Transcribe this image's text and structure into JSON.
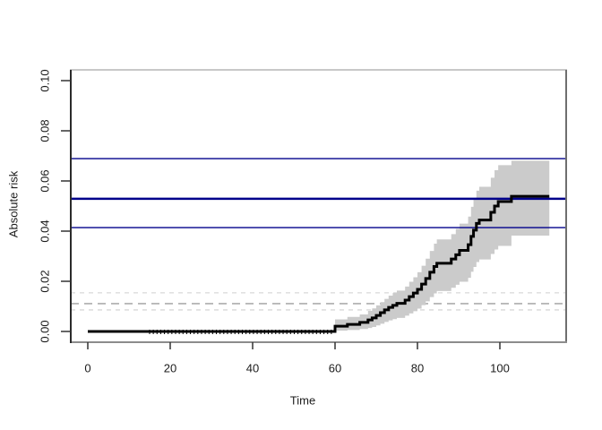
{
  "chart_data": {
    "type": "line",
    "step": true,
    "title": "",
    "xlabel": "Time",
    "ylabel": "Absolute risk",
    "xlim": [
      -4,
      116
    ],
    "ylim": [
      -0.004,
      0.104
    ],
    "grid": false,
    "legend": "none",
    "x_ticks": [
      0,
      20,
      40,
      60,
      80,
      100
    ],
    "x_tick_labels": [
      "0",
      "20",
      "40",
      "60",
      "80",
      "100"
    ],
    "y_ticks": [
      0,
      0.02,
      0.04,
      0.06,
      0.08,
      0.1
    ],
    "y_tick_labels": [
      "0.00",
      "0.02",
      "0.04",
      "0.06",
      "0.08",
      "0.10"
    ],
    "series": [
      {
        "name": "absolute-risk-step-estimate-with-95pct-band",
        "color": "#000000",
        "points": [
          [
            0,
            0,
            0,
            0
          ],
          [
            60,
            0.0021,
            0.0003,
            0.0048
          ],
          [
            63,
            0.0028,
            0.0006,
            0.0058
          ],
          [
            66,
            0.0036,
            0.001,
            0.0068
          ],
          [
            68,
            0.0046,
            0.0014,
            0.0082
          ],
          [
            69,
            0.0054,
            0.0018,
            0.0092
          ],
          [
            70,
            0.0064,
            0.0024,
            0.0104
          ],
          [
            71,
            0.0075,
            0.0031,
            0.0117
          ],
          [
            72,
            0.0086,
            0.0038,
            0.013
          ],
          [
            73,
            0.0096,
            0.0044,
            0.0143
          ],
          [
            74,
            0.0104,
            0.0049,
            0.0153
          ],
          [
            75,
            0.0112,
            0.0054,
            0.0163
          ],
          [
            77,
            0.0125,
            0.0063,
            0.0179
          ],
          [
            78,
            0.0139,
            0.0072,
            0.0198
          ],
          [
            79,
            0.0153,
            0.0081,
            0.0216
          ],
          [
            80,
            0.0168,
            0.0091,
            0.0236
          ],
          [
            81,
            0.0189,
            0.0105,
            0.0262
          ],
          [
            82,
            0.0211,
            0.012,
            0.029
          ],
          [
            83,
            0.0236,
            0.0137,
            0.0321
          ],
          [
            84,
            0.0259,
            0.0152,
            0.035
          ],
          [
            84.7,
            0.0272,
            0.0161,
            0.0367
          ],
          [
            88.2,
            0.0289,
            0.0174,
            0.0388
          ],
          [
            89.3,
            0.0306,
            0.0186,
            0.0409
          ],
          [
            90.2,
            0.0323,
            0.0198,
            0.043
          ],
          [
            92.3,
            0.0346,
            0.0214,
            0.0458
          ],
          [
            93,
            0.0379,
            0.0238,
            0.0497
          ],
          [
            93.6,
            0.0404,
            0.0257,
            0.0528
          ],
          [
            94.3,
            0.0431,
            0.0277,
            0.0561
          ],
          [
            95,
            0.0444,
            0.0287,
            0.0577
          ],
          [
            97.8,
            0.0475,
            0.0309,
            0.0613
          ],
          [
            98.7,
            0.05,
            0.0327,
            0.0643
          ],
          [
            99.6,
            0.0518,
            0.0341,
            0.0663
          ],
          [
            102.8,
            0.0539,
            0.0382,
            0.0681
          ],
          [
            112,
            0.0539,
            0.0382,
            0.0681
          ]
        ],
        "points_format": [
          "time",
          "estimate",
          "lower95",
          "upper95"
        ]
      }
    ],
    "band_color": "#CBCBCB",
    "band_start_time": 60,
    "reference_line_color": "#00008B",
    "solid_reference_lines": [
      {
        "value": 0.0689,
        "weight": "thin"
      },
      {
        "value": 0.0529,
        "weight": "thick"
      },
      {
        "value": 0.0414,
        "weight": "thin"
      }
    ],
    "dashed_reference_lines": [
      {
        "value": 0.0154,
        "color": "#D8D8D8",
        "emphasis": "light"
      },
      {
        "value": 0.0111,
        "color": "#ADADAD",
        "emphasis": "medium"
      },
      {
        "value": 0.0086,
        "color": "#D8D8D8",
        "emphasis": "light"
      }
    ],
    "censor_marks": {
      "start": 15,
      "end": 59.5,
      "step": 0.9
    }
  }
}
